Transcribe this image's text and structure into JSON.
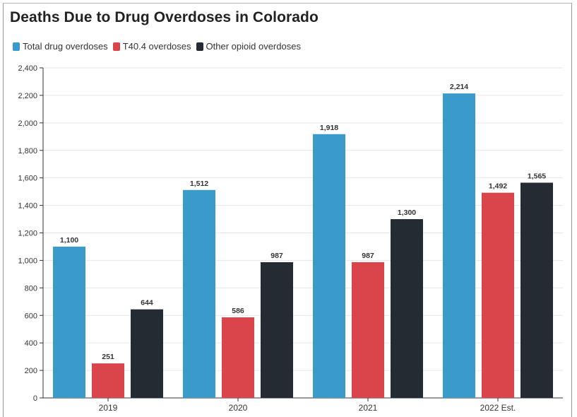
{
  "chart_data": {
    "type": "bar",
    "title": "Deaths Due to Drug Overdoses in Colorado",
    "categories": [
      "2019",
      "2020",
      "2021",
      "2022 Est."
    ],
    "series": [
      {
        "name": "Total drug overdoses",
        "color": "#3a9ac9",
        "values": [
          1100,
          1512,
          1918,
          2214
        ],
        "labels": [
          "1,100",
          "1,512",
          "1,918",
          "2,214"
        ]
      },
      {
        "name": "T40.4 overdoses",
        "color": "#d9454a",
        "values": [
          251,
          586,
          987,
          1492
        ],
        "labels": [
          "251",
          "586",
          "987",
          "1,492"
        ]
      },
      {
        "name": "Other opioid overdoses",
        "color": "#252b33",
        "values": [
          644,
          987,
          1300,
          1565
        ],
        "labels": [
          "644",
          "987",
          "1,300",
          "1,565"
        ]
      }
    ],
    "ylim": [
      0,
      2400
    ],
    "yticks": [
      0,
      200,
      400,
      600,
      800,
      1000,
      1200,
      1400,
      1600,
      1800,
      2000,
      2200,
      2400
    ],
    "ytick_labels": [
      "0",
      "200",
      "400",
      "600",
      "800",
      "1,000",
      "1,200",
      "1,400",
      "1,600",
      "1,800",
      "2,000",
      "2,200",
      "2,400"
    ],
    "grid": true,
    "legend_position": "top-left",
    "xlabel": "",
    "ylabel": ""
  }
}
